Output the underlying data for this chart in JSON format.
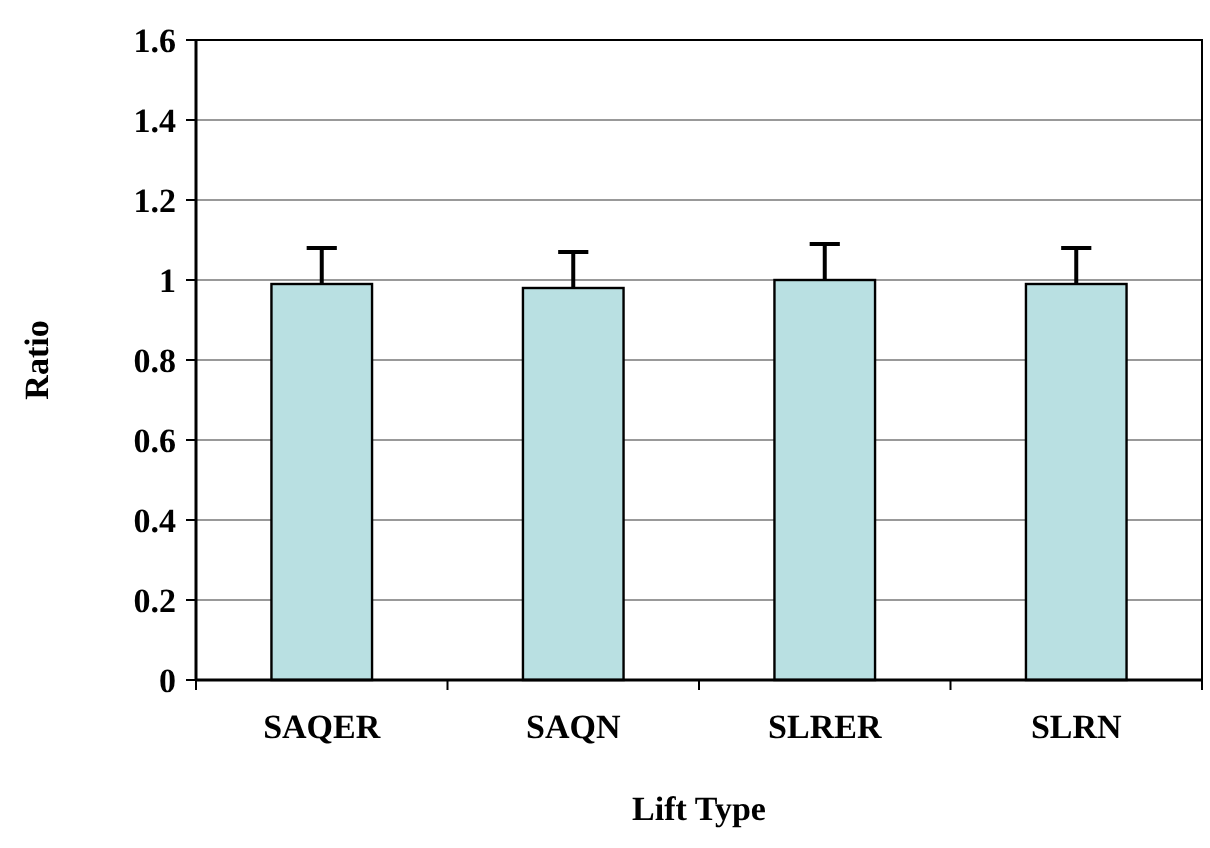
{
  "chart_data": {
    "type": "bar",
    "xlabel": "Lift Type",
    "ylabel": "Ratio",
    "categories": [
      "SAQER",
      "SAQN",
      "SLRER",
      "SLRN"
    ],
    "values": [
      0.99,
      0.98,
      1.0,
      0.99
    ],
    "errors": [
      [
        0.99,
        1.08
      ],
      [
        0.98,
        1.07
      ],
      [
        1.0,
        1.09
      ],
      [
        0.99,
        1.08
      ]
    ],
    "color": "#b9e0e2",
    "ylim": [
      0,
      1.6
    ],
    "yticks": [
      0,
      0.2,
      0.4,
      0.6,
      0.8,
      1,
      1.2,
      1.4,
      1.6
    ],
    "grid": "y"
  }
}
